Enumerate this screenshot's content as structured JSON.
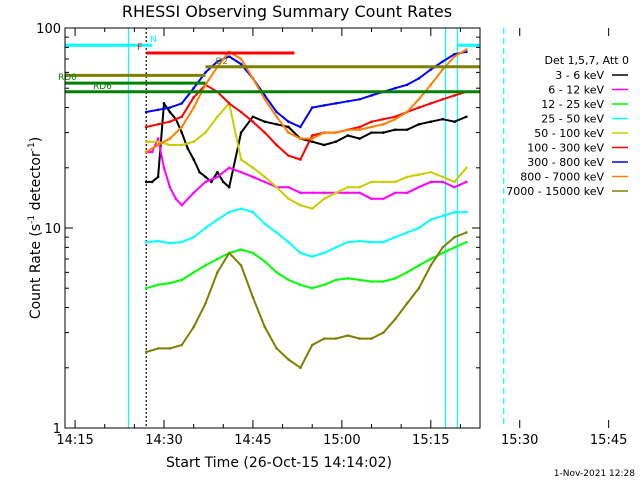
{
  "chart_data": {
    "type": "line",
    "title": "RHESSI Observing Summary Count Rates",
    "xlabel": "Start Time (26-Oct-15 14:14:02)",
    "ylabel_parts": [
      "Count Rate (s",
      "-1",
      " detector",
      "-1",
      ")"
    ],
    "yscale": "log",
    "ylim": [
      1,
      100
    ],
    "xlim_minutes": [
      -1.7,
      68.3
    ],
    "x_ticks": [
      {
        "label": "14:15",
        "min": 0
      },
      {
        "label": "14:30",
        "min": 15
      },
      {
        "label": "14:45",
        "min": 30
      },
      {
        "label": "15:00",
        "min": 45
      },
      {
        "label": "15:15",
        "min": 60
      },
      {
        "label": "15:30",
        "min": 75
      },
      {
        "label": "15:45",
        "min": 90
      }
    ],
    "y_ticks": [
      {
        "label": "1",
        "v": 1
      },
      {
        "label": "10",
        "v": 10
      },
      {
        "label": "100",
        "v": 100
      }
    ],
    "legend_header": "Det 1,5,7, Att 0",
    "series": [
      {
        "name": "3 - 6 keV",
        "color": "#000000",
        "x": [
          12,
          13,
          14,
          15,
          16,
          17,
          18,
          19,
          20,
          21,
          22,
          23,
          24,
          25,
          26,
          28,
          30,
          32,
          34,
          36,
          38,
          40,
          42,
          44,
          46,
          48,
          50,
          52,
          54,
          56,
          58,
          60,
          62,
          64,
          66
        ],
        "y": [
          17,
          17,
          18,
          42,
          38,
          35,
          30,
          25,
          22,
          19,
          18,
          17,
          19,
          17,
          16,
          30,
          36,
          34,
          33,
          32,
          28,
          27,
          26,
          27,
          29,
          28,
          30,
          30,
          31,
          31,
          33,
          34,
          35,
          34,
          36
        ]
      },
      {
        "name": "6 - 12 keV",
        "color": "#ff00ff",
        "x": [
          12,
          13,
          14,
          15,
          16,
          17,
          18,
          20,
          22,
          24,
          26,
          28,
          30,
          32,
          34,
          36,
          38,
          40,
          42,
          44,
          46,
          48,
          50,
          52,
          54,
          56,
          58,
          60,
          62,
          64,
          66
        ],
        "y": [
          24,
          24,
          28,
          20,
          16,
          14,
          13,
          15,
          17,
          18,
          20,
          19,
          18,
          17,
          16,
          16,
          15,
          15,
          15,
          15,
          15,
          15,
          14,
          14,
          15,
          15,
          16,
          17,
          17,
          16,
          17
        ]
      },
      {
        "name": "12 - 25 keV",
        "color": "#00ff00",
        "x": [
          12,
          14,
          16,
          18,
          20,
          22,
          24,
          26,
          28,
          30,
          32,
          34,
          36,
          38,
          40,
          42,
          44,
          46,
          48,
          50,
          52,
          54,
          56,
          58,
          60,
          62,
          64,
          66
        ],
        "y": [
          5,
          5.2,
          5.3,
          5.5,
          6,
          6.5,
          7,
          7.5,
          7.8,
          7.5,
          6.8,
          6,
          5.5,
          5.2,
          5.0,
          5.2,
          5.5,
          5.6,
          5.5,
          5.4,
          5.4,
          5.6,
          6,
          6.5,
          7,
          7.5,
          8.0,
          8.5
        ]
      },
      {
        "name": "25 - 50 keV",
        "color": "#00ffff",
        "x": [
          12,
          14,
          16,
          18,
          20,
          22,
          24,
          26,
          28,
          30,
          32,
          34,
          36,
          38,
          40,
          42,
          44,
          46,
          48,
          50,
          52,
          54,
          56,
          58,
          60,
          62,
          64,
          66
        ],
        "y": [
          8.5,
          8.6,
          8.4,
          8.5,
          9,
          10,
          11,
          12,
          12.5,
          12,
          10.5,
          9.5,
          8.5,
          7.5,
          7.2,
          7.5,
          8,
          8.5,
          8.6,
          8.5,
          8.5,
          9,
          9.5,
          10,
          11,
          11.5,
          12,
          12
        ]
      },
      {
        "name": "50 - 100 keV",
        "color": "#cccc00",
        "x": [
          12,
          14,
          16,
          18,
          20,
          22,
          24,
          26,
          28,
          30,
          32,
          34,
          36,
          38,
          40,
          42,
          44,
          46,
          48,
          50,
          52,
          54,
          56,
          58,
          60,
          62,
          64,
          66
        ],
        "y": [
          27,
          27,
          26,
          26,
          27,
          30,
          36,
          42,
          22,
          20,
          18,
          16,
          14,
          13,
          12.5,
          14,
          15,
          16,
          16,
          17,
          17,
          17,
          18,
          18.5,
          19,
          18,
          17,
          20
        ]
      },
      {
        "name": "100 - 300 keV",
        "color": "#ff0000",
        "x": [
          12,
          14,
          16,
          18,
          20,
          22,
          24,
          26,
          28,
          30,
          32,
          34,
          36,
          38,
          40,
          42,
          44,
          46,
          48,
          50,
          52,
          54,
          56,
          58,
          60,
          62,
          64,
          66
        ],
        "y": [
          32,
          33,
          34,
          36,
          45,
          52,
          48,
          42,
          38,
          34,
          30,
          26,
          23,
          22,
          29,
          30,
          30,
          31,
          32,
          34,
          35,
          36,
          38,
          40,
          42,
          44,
          46,
          48
        ]
      },
      {
        "name": "300 - 800 keV",
        "color": "#0000ff",
        "x": [
          12,
          14,
          16,
          18,
          20,
          22,
          24,
          26,
          28,
          30,
          32,
          34,
          36,
          38,
          40,
          42,
          44,
          46,
          48,
          50,
          52,
          54,
          56,
          58,
          60,
          62,
          64,
          66
        ],
        "y": [
          38,
          39,
          40,
          42,
          50,
          60,
          68,
          72,
          66,
          56,
          46,
          38,
          34,
          32,
          40,
          41,
          42,
          43,
          44,
          46,
          48,
          50,
          52,
          56,
          62,
          68,
          74,
          76
        ]
      },
      {
        "name": "800 - 7000 keV",
        "color": "#ff8000",
        "x": [
          12,
          14,
          16,
          18,
          20,
          22,
          24,
          26,
          28,
          30,
          32,
          34,
          36,
          38,
          40,
          42,
          44,
          46,
          48,
          50,
          52,
          54,
          56,
          58,
          60,
          62,
          64,
          66
        ],
        "y": [
          24,
          26,
          28,
          32,
          40,
          52,
          64,
          76,
          70,
          56,
          44,
          36,
          30,
          28,
          28,
          30,
          30,
          31,
          31,
          32,
          33,
          35,
          38,
          44,
          52,
          62,
          72,
          78
        ]
      },
      {
        "name": "7000 - 15000 keV",
        "color": "#808000",
        "x": [
          12,
          14,
          16,
          18,
          20,
          22,
          24,
          26,
          28,
          30,
          32,
          34,
          36,
          38,
          40,
          42,
          44,
          46,
          48,
          50,
          52,
          54,
          56,
          58,
          60,
          62,
          64,
          66
        ],
        "y": [
          2.4,
          2.5,
          2.5,
          2.6,
          3.2,
          4.2,
          6,
          7.5,
          6.5,
          4.5,
          3.2,
          2.5,
          2.2,
          2.0,
          2.6,
          2.8,
          2.8,
          2.9,
          2.8,
          2.8,
          3.0,
          3.5,
          4.2,
          5,
          6.5,
          8,
          9,
          9.5
        ]
      }
    ],
    "flag_bars": [
      {
        "label": "N",
        "color": "#00ffff",
        "x_start": -1.7,
        "x_end": 13,
        "level": 82
      },
      {
        "label": "",
        "color": "#00ffff",
        "x_start": 64.5,
        "x_end": 68.3,
        "level": 82
      },
      {
        "label": "F",
        "color": "#ff0000",
        "x_start": 12,
        "x_end": 37,
        "level": 75
      },
      {
        "label": "D2",
        "color": "#808000",
        "x_start": 22,
        "x_end": 68.3,
        "level": 64
      },
      {
        "label": "",
        "color": "#808000",
        "x_start": -1.7,
        "x_end": 22,
        "level": 58
      },
      {
        "label": "RD0",
        "color": "#008000",
        "x_start": -1.7,
        "x_end": 22,
        "level": 53
      },
      {
        "label": "RD6",
        "color": "#008000",
        "x_start": -1.7,
        "x_end": 68.3,
        "level": 48
      }
    ],
    "vertical_markers": [
      {
        "x": 9.0,
        "color": "#00ffff",
        "style": "solid"
      },
      {
        "x": 12.0,
        "color": "#000000",
        "style": "dotted"
      },
      {
        "x": 62.5,
        "color": "#00ffff",
        "style": "solid"
      },
      {
        "x": 64.5,
        "color": "#00ffff",
        "style": "solid"
      },
      {
        "x": 72.3,
        "color": "#00ffff",
        "style": "dashed"
      }
    ]
  },
  "footer_date": "1-Nov-2021 12:28"
}
